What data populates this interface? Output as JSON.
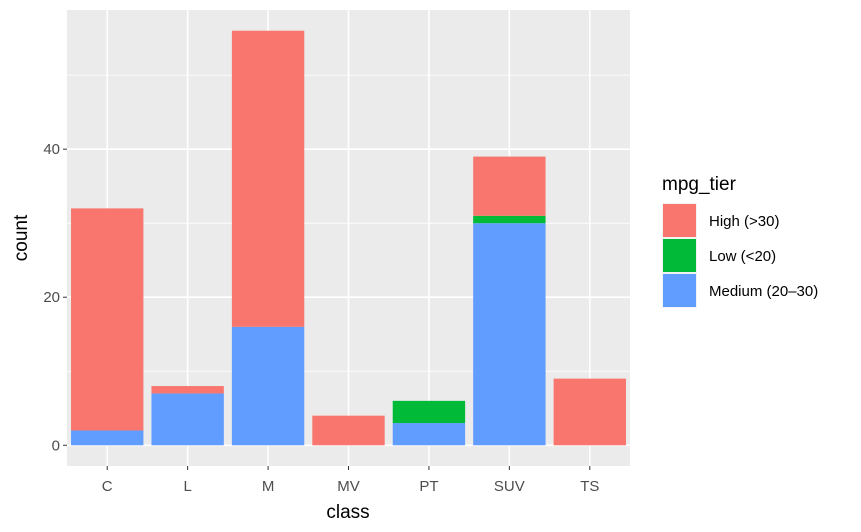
{
  "chart_data": {
    "type": "bar",
    "stacked": true,
    "categories": [
      "C",
      "L",
      "M",
      "MV",
      "PT",
      "SUV",
      "TS"
    ],
    "series": [
      {
        "name": "High (>30)",
        "color": "#F8766D",
        "values": [
          30,
          1,
          40,
          4,
          0,
          8,
          9
        ]
      },
      {
        "name": "Low (<20)",
        "color": "#00BA38",
        "values": [
          0,
          0,
          0,
          0,
          3,
          1,
          0
        ]
      },
      {
        "name": "Medium (20–30)",
        "color": "#619CFF",
        "values": [
          2,
          7,
          16,
          0,
          3,
          30,
          0
        ]
      }
    ],
    "xlabel": "class",
    "ylabel": "count",
    "ylim": [
      -2.8,
      58.8
    ],
    "yticks": [
      0,
      20,
      40
    ],
    "ytick_labels": [
      "0",
      "20",
      "40"
    ],
    "legend_title": "mpg_tier",
    "legend_position": "right",
    "grid": true,
    "panel_color": "#EBEBEB"
  }
}
